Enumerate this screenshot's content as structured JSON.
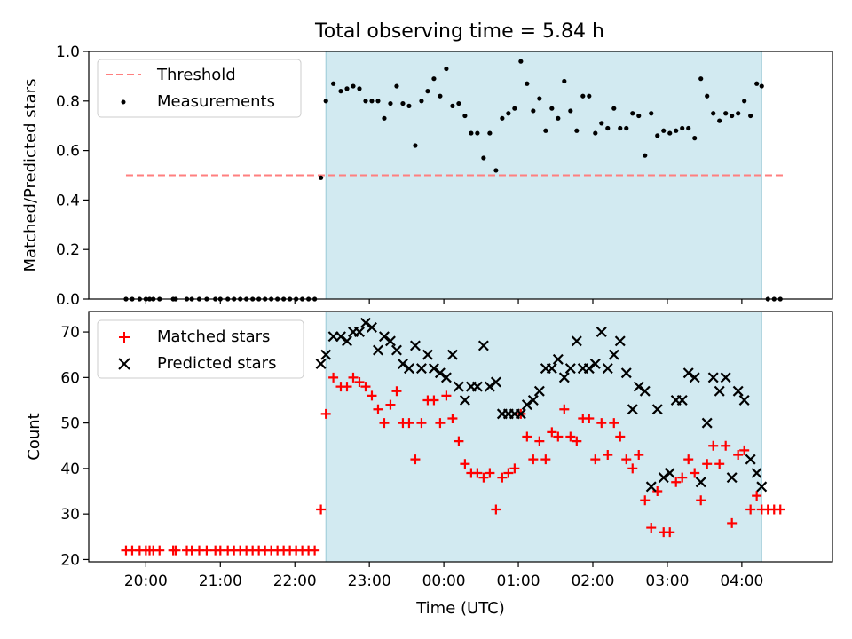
{
  "figure": {
    "title": "Total observing time = 5.84 h"
  },
  "chart_data": [
    {
      "type": "scatter",
      "name": "ratio-panel",
      "ylabel": "Matched/Predicted stars",
      "ylim": [
        0.0,
        1.0
      ],
      "yticks": [
        0.0,
        0.2,
        0.4,
        0.6,
        0.8,
        1.0
      ],
      "ytick_labels": [
        "0.0",
        "0.2",
        "0.4",
        "0.6",
        "0.8",
        "1.0"
      ],
      "legend": {
        "placement": "upper-left",
        "entries": [
          "Threshold",
          "Measurements"
        ]
      },
      "threshold": {
        "name": "Threshold",
        "value": 0.5,
        "x_start": "19:44",
        "x_end": "04:33",
        "color": "#ff7f7f",
        "style": "dashed"
      },
      "observing_window": {
        "start": "22:25",
        "end": "04:16",
        "color": "#add8e6"
      },
      "series": [
        {
          "name": "Measurements",
          "marker": "dot",
          "color": "#000000",
          "x": [
            "19:44",
            "19:49",
            "19:55",
            "20:00",
            "20:03",
            "20:06",
            "20:11",
            "20:22",
            "20:24",
            "20:33",
            "20:37",
            "20:43",
            "20:49",
            "20:56",
            "21:00",
            "21:06",
            "21:11",
            "21:16",
            "21:21",
            "21:26",
            "21:31",
            "21:36",
            "21:41",
            "21:46",
            "21:51",
            "21:56",
            "22:01",
            "22:06",
            "22:11",
            "22:16",
            "22:21",
            "22:25",
            "22:31",
            "22:37",
            "22:42",
            "22:47",
            "22:52",
            "22:57",
            "23:02",
            "23:07",
            "23:12",
            "23:17",
            "23:22",
            "23:27",
            "23:32",
            "23:37",
            "23:42",
            "23:47",
            "23:52",
            "23:57",
            "00:02",
            "00:07",
            "00:12",
            "00:17",
            "00:22",
            "00:27",
            "00:32",
            "00:37",
            "00:42",
            "00:47",
            "00:52",
            "00:57",
            "01:02",
            "01:07",
            "01:12",
            "01:17",
            "01:22",
            "01:27",
            "01:32",
            "01:37",
            "01:42",
            "01:47",
            "01:52",
            "01:57",
            "02:02",
            "02:07",
            "02:12",
            "02:17",
            "02:22",
            "02:27",
            "02:32",
            "02:37",
            "02:42",
            "02:47",
            "02:52",
            "02:57",
            "03:02",
            "03:07",
            "03:12",
            "03:17",
            "03:22",
            "03:27",
            "03:32",
            "03:37",
            "03:42",
            "03:47",
            "03:52",
            "03:57",
            "04:02",
            "04:07",
            "04:12",
            "04:16",
            "04:21",
            "04:26",
            "04:31"
          ],
          "y": [
            0,
            0,
            0,
            0,
            0,
            0,
            0,
            0,
            0,
            0,
            0,
            0,
            0,
            0,
            0,
            0,
            0,
            0,
            0,
            0,
            0,
            0,
            0,
            0,
            0,
            0,
            0,
            0,
            0,
            0,
            0.49,
            0.8,
            0.87,
            0.84,
            0.85,
            0.86,
            0.85,
            0.8,
            0.8,
            0.8,
            0.73,
            0.79,
            0.86,
            0.79,
            0.78,
            0.62,
            0.8,
            0.84,
            0.89,
            0.82,
            0.93,
            0.78,
            0.79,
            0.74,
            0.67,
            0.67,
            0.57,
            0.67,
            0.52,
            0.73,
            0.75,
            0.77,
            0.96,
            0.87,
            0.76,
            0.81,
            0.68,
            0.77,
            0.73,
            0.88,
            0.76,
            0.68,
            0.82,
            0.82,
            0.67,
            0.71,
            0.69,
            0.77,
            0.69,
            0.69,
            0.75,
            0.74,
            0.58,
            0.75,
            0.66,
            0.68,
            0.67,
            0.68,
            0.69,
            0.69,
            0.65,
            0.89,
            0.82,
            0.75,
            0.72,
            0.75,
            0.74,
            0.75,
            0.8,
            0.74,
            0.87,
            0.86,
            0,
            0,
            0
          ]
        }
      ]
    },
    {
      "type": "scatter",
      "name": "count-panel",
      "xlabel": "Time (UTC)",
      "ylabel": "Count",
      "xlim": [
        "19:14",
        "05:13"
      ],
      "ylim": [
        19.5,
        74.5
      ],
      "xticks": [
        "20:00",
        "21:00",
        "22:00",
        "23:00",
        "00:00",
        "01:00",
        "02:00",
        "03:00",
        "04:00"
      ],
      "yticks": [
        20,
        30,
        40,
        50,
        60,
        70
      ],
      "ytick_labels": [
        "20",
        "30",
        "40",
        "50",
        "60",
        "70"
      ],
      "legend": {
        "placement": "upper-left",
        "entries": [
          "Matched stars",
          "Predicted stars"
        ]
      },
      "observing_window": {
        "start": "22:25",
        "end": "04:16",
        "color": "#add8e6"
      },
      "series": [
        {
          "name": "Matched stars",
          "marker": "plus",
          "color": "#ff0000",
          "x": [
            "19:44",
            "19:49",
            "19:55",
            "20:00",
            "20:03",
            "20:06",
            "20:11",
            "20:22",
            "20:24",
            "20:33",
            "20:37",
            "20:43",
            "20:49",
            "20:56",
            "21:00",
            "21:06",
            "21:11",
            "21:16",
            "21:21",
            "21:26",
            "21:31",
            "21:36",
            "21:41",
            "21:46",
            "21:51",
            "21:56",
            "22:01",
            "22:06",
            "22:11",
            "22:16",
            "22:21",
            "22:25",
            "22:31",
            "22:37",
            "22:42",
            "22:47",
            "22:52",
            "22:57",
            "23:02",
            "23:07",
            "23:12",
            "23:17",
            "23:22",
            "23:27",
            "23:32",
            "23:37",
            "23:42",
            "23:47",
            "23:52",
            "23:57",
            "00:02",
            "00:07",
            "00:12",
            "00:17",
            "00:22",
            "00:27",
            "00:32",
            "00:37",
            "00:42",
            "00:47",
            "00:52",
            "00:57",
            "01:02",
            "01:07",
            "01:12",
            "01:17",
            "01:22",
            "01:27",
            "01:32",
            "01:37",
            "01:42",
            "01:47",
            "01:52",
            "01:57",
            "02:02",
            "02:07",
            "02:12",
            "02:17",
            "02:22",
            "02:27",
            "02:32",
            "02:37",
            "02:42",
            "02:47",
            "02:52",
            "02:57",
            "03:02",
            "03:07",
            "03:12",
            "03:17",
            "03:22",
            "03:27",
            "03:32",
            "03:37",
            "03:42",
            "03:47",
            "03:52",
            "03:57",
            "04:02",
            "04:07",
            "04:12",
            "04:16",
            "04:21",
            "04:26",
            "04:31"
          ],
          "y": [
            22,
            22,
            22,
            22,
            22,
            22,
            22,
            22,
            22,
            22,
            22,
            22,
            22,
            22,
            22,
            22,
            22,
            22,
            22,
            22,
            22,
            22,
            22,
            22,
            22,
            22,
            22,
            22,
            22,
            22,
            31,
            52,
            60,
            58,
            58,
            60,
            59,
            58,
            56,
            53,
            50,
            54,
            57,
            50,
            50,
            42,
            50,
            55,
            55,
            50,
            56,
            51,
            46,
            41,
            39,
            39,
            38,
            39,
            31,
            38,
            39,
            40,
            52,
            47,
            42,
            46,
            42,
            48,
            47,
            53,
            47,
            46,
            51,
            51,
            42,
            50,
            43,
            50,
            47,
            42,
            40,
            43,
            33,
            27,
            35,
            26,
            26,
            37,
            38,
            42,
            39,
            33,
            41,
            45,
            41,
            45,
            28,
            43,
            44,
            31,
            34,
            31,
            31,
            31,
            31
          ]
        },
        {
          "name": "Predicted stars",
          "marker": "x",
          "color": "#000000",
          "x": [
            "22:21",
            "22:25",
            "22:31",
            "22:37",
            "22:42",
            "22:47",
            "22:52",
            "22:57",
            "23:02",
            "23:07",
            "23:12",
            "23:17",
            "23:22",
            "23:27",
            "23:32",
            "23:37",
            "23:42",
            "23:47",
            "23:52",
            "23:57",
            "00:02",
            "00:07",
            "00:12",
            "00:17",
            "00:22",
            "00:27",
            "00:32",
            "00:37",
            "00:42",
            "00:47",
            "00:52",
            "00:57",
            "01:02",
            "01:07",
            "01:12",
            "01:17",
            "01:22",
            "01:27",
            "01:32",
            "01:37",
            "01:42",
            "01:47",
            "01:52",
            "01:57",
            "02:02",
            "02:07",
            "02:12",
            "02:17",
            "02:22",
            "02:27",
            "02:32",
            "02:37",
            "02:42",
            "02:47",
            "02:52",
            "02:57",
            "03:02",
            "03:07",
            "03:12",
            "03:17",
            "03:22",
            "03:27",
            "03:32",
            "03:37",
            "03:42",
            "03:47",
            "03:52",
            "03:57",
            "04:02",
            "04:07",
            "04:12",
            "04:16"
          ],
          "y": [
            63,
            65,
            69,
            69,
            68,
            70,
            70,
            72,
            71,
            66,
            69,
            68,
            66,
            63,
            62,
            67,
            62,
            65,
            62,
            61,
            60,
            65,
            58,
            55,
            58,
            58,
            67,
            58,
            59,
            52,
            52,
            52,
            52,
            54,
            55,
            57,
            62,
            62,
            64,
            60,
            62,
            68,
            62,
            62,
            63,
            70,
            62,
            65,
            68,
            61,
            53,
            58,
            57,
            36,
            53,
            38,
            39,
            55,
            55,
            61,
            60,
            37,
            50,
            60,
            57,
            60,
            38,
            57,
            55,
            42,
            39,
            36
          ]
        }
      ]
    }
  ]
}
